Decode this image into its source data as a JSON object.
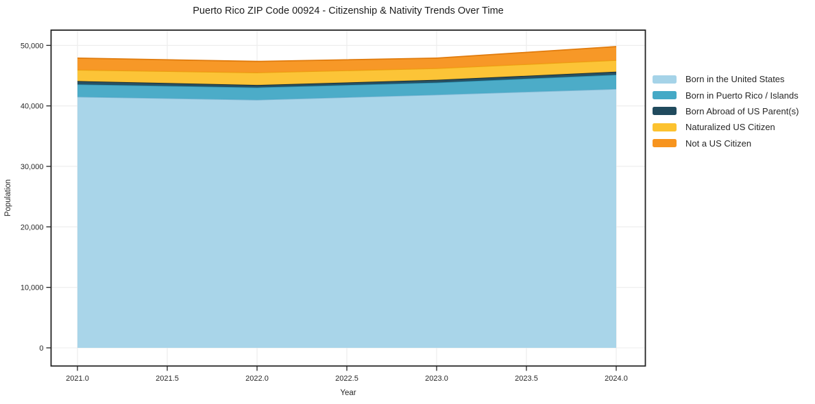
{
  "title": "Puerto Rico ZIP Code 00924 - Citizenship & Nativity Trends Over Time",
  "chart_data": {
    "type": "area",
    "stacked": true,
    "x": [
      2021,
      2022,
      2023,
      2024
    ],
    "series": [
      {
        "name": "Born in the United States",
        "color": "#a5d3e8",
        "edge": "#7fb8d4",
        "values": [
          41500,
          41000,
          41850,
          42800
        ]
      },
      {
        "name": "Born in Puerto Rico / Islands",
        "color": "#45a9c6",
        "edge": "#2d93b3",
        "values": [
          2050,
          2050,
          2000,
          2350
        ]
      },
      {
        "name": "Born Abroad of US Parent(s)",
        "color": "#204a5d",
        "edge": "#122c38",
        "values": [
          550,
          400,
          450,
          500
        ]
      },
      {
        "name": "Naturalized US Citizen",
        "color": "#fcc22f",
        "edge": "#eba312",
        "values": [
          1850,
          2050,
          1900,
          1900
        ]
      },
      {
        "name": "Not a US Citizen",
        "color": "#f7941e",
        "edge": "#e07b0d",
        "values": [
          1950,
          1850,
          1700,
          2250
        ]
      }
    ],
    "totals": [
      47900,
      47350,
      47900,
      49800
    ],
    "xlabel": "Year",
    "ylabel": "Population",
    "x_ticks": [
      2021.0,
      2021.5,
      2022.0,
      2022.5,
      2023.0,
      2023.5,
      2024.0
    ],
    "x_tick_labels": [
      "2021.0",
      "2021.5",
      "2022.0",
      "2022.5",
      "2023.0",
      "2023.5",
      "2024.0"
    ],
    "y_ticks": [
      0,
      10000,
      20000,
      30000,
      40000,
      50000
    ],
    "y_tick_labels": [
      "0",
      "10,000",
      "20,000",
      "30,000",
      "40,000",
      "50,000"
    ],
    "xlim": [
      2020.85,
      2024.16
    ],
    "ylim": [
      0,
      52500
    ],
    "grid": true,
    "grid_color": "#ececec",
    "spine_color": "#222222",
    "legend_position": "right-outside"
  }
}
